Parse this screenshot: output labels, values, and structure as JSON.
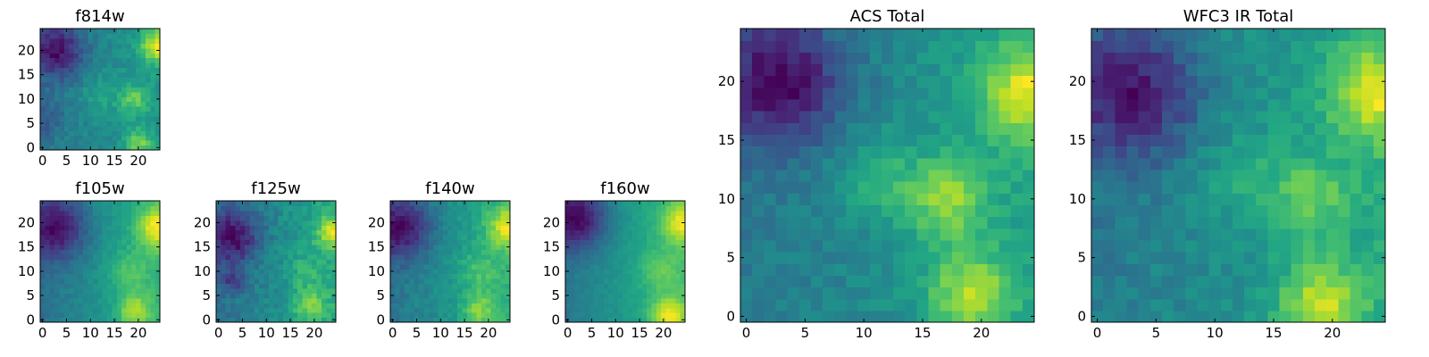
{
  "chart_data": [
    {
      "type": "heatmap",
      "title": "f814w",
      "xlim": [
        -0.5,
        24.5
      ],
      "ylim": [
        -0.5,
        24.5
      ],
      "xticks": [
        0,
        5,
        10,
        15,
        20
      ],
      "yticks": [
        0,
        5,
        10,
        15,
        20
      ],
      "grid_size": [
        25,
        25
      ],
      "colormap": "viridis",
      "value_range": [
        0,
        1
      ],
      "features": [
        {
          "x": 3,
          "y": 20,
          "sigma": 4,
          "amp": -0.6
        },
        {
          "x": 24,
          "y": 21,
          "sigma": 2.5,
          "amp": 0.65
        },
        {
          "x": 19,
          "y": 10,
          "sigma": 2.2,
          "amp": 0.4
        },
        {
          "x": 20,
          "y": 1,
          "sigma": 2.0,
          "amp": 0.45
        },
        {
          "x": 12,
          "y": 11,
          "sigma": 2.5,
          "amp": 0.2
        },
        {
          "x": 0,
          "y": 6,
          "sigma": 3,
          "amp": -0.2
        }
      ],
      "base": 0.5,
      "gradient": 0.2,
      "noise": 0.09
    },
    {
      "type": "heatmap",
      "title": "f105w",
      "xlim": [
        -0.5,
        24.5
      ],
      "ylim": [
        -0.5,
        24.5
      ],
      "xticks": [
        0,
        5,
        10,
        15,
        20
      ],
      "yticks": [
        0,
        5,
        10,
        15,
        20
      ],
      "grid_size": [
        25,
        25
      ],
      "colormap": "viridis",
      "value_range": [
        0,
        1
      ],
      "features": [
        {
          "x": 3,
          "y": 19,
          "sigma": 4.5,
          "amp": -0.5
        },
        {
          "x": 24,
          "y": 19,
          "sigma": 3,
          "amp": 0.5
        },
        {
          "x": 19,
          "y": 2,
          "sigma": 2.5,
          "amp": 0.4
        },
        {
          "x": 18,
          "y": 10,
          "sigma": 3,
          "amp": 0.2
        }
      ],
      "base": 0.45,
      "gradient": 0.35,
      "noise": 0.05
    },
    {
      "type": "heatmap",
      "title": "f125w",
      "xlim": [
        -0.5,
        24.5
      ],
      "ylim": [
        -0.5,
        24.5
      ],
      "xticks": [
        0,
        5,
        10,
        15,
        20
      ],
      "yticks": [
        0,
        5,
        10,
        15,
        20
      ],
      "grid_size": [
        25,
        25
      ],
      "colormap": "viridis",
      "value_range": [
        0,
        1
      ],
      "features": [
        {
          "x": 3,
          "y": 17,
          "sigma": 4,
          "amp": -0.5
        },
        {
          "x": 3,
          "y": 8,
          "sigma": 1.5,
          "amp": -0.3
        },
        {
          "x": 24,
          "y": 18,
          "sigma": 2.5,
          "amp": 0.5
        },
        {
          "x": 19,
          "y": 3,
          "sigma": 2.5,
          "amp": 0.35
        },
        {
          "x": 18,
          "y": 10,
          "sigma": 3,
          "amp": 0.15
        }
      ],
      "base": 0.45,
      "gradient": 0.3,
      "noise": 0.09
    },
    {
      "type": "heatmap",
      "title": "f140w",
      "xlim": [
        -0.5,
        24.5
      ],
      "ylim": [
        -0.5,
        24.5
      ],
      "xticks": [
        0,
        5,
        10,
        15,
        20
      ],
      "yticks": [
        0,
        5,
        10,
        15,
        20
      ],
      "grid_size": [
        25,
        25
      ],
      "colormap": "viridis",
      "value_range": [
        0,
        1
      ],
      "features": [
        {
          "x": 2,
          "y": 19,
          "sigma": 4.5,
          "amp": -0.55
        },
        {
          "x": 24,
          "y": 19,
          "sigma": 3,
          "amp": 0.5
        },
        {
          "x": 18,
          "y": 2,
          "sigma": 2.5,
          "amp": 0.35
        },
        {
          "x": 18,
          "y": 10,
          "sigma": 3,
          "amp": 0.2
        }
      ],
      "base": 0.42,
      "gradient": 0.35,
      "noise": 0.07
    },
    {
      "type": "heatmap",
      "title": "f160w",
      "xlim": [
        -0.5,
        24.5
      ],
      "ylim": [
        -0.5,
        24.5
      ],
      "xticks": [
        0,
        5,
        10,
        15,
        20
      ],
      "yticks": [
        0,
        5,
        10,
        15,
        20
      ],
      "grid_size": [
        25,
        25
      ],
      "colormap": "viridis",
      "value_range": [
        0,
        1
      ],
      "features": [
        {
          "x": 2,
          "y": 21,
          "sigma": 4.5,
          "amp": -0.6
        },
        {
          "x": 24,
          "y": 20,
          "sigma": 3,
          "amp": 0.45
        },
        {
          "x": 21,
          "y": 1,
          "sigma": 2.5,
          "amp": 0.5
        },
        {
          "x": 19,
          "y": 10,
          "sigma": 3,
          "amp": 0.2
        }
      ],
      "base": 0.42,
      "gradient": 0.4,
      "noise": 0.04
    },
    {
      "type": "heatmap",
      "title": "ACS Total",
      "xlim": [
        -0.5,
        24.5
      ],
      "ylim": [
        -0.5,
        24.5
      ],
      "xticks": [
        0,
        5,
        10,
        15,
        20
      ],
      "yticks": [
        0,
        5,
        10,
        15,
        20
      ],
      "grid_size": [
        25,
        25
      ],
      "colormap": "viridis",
      "value_range": [
        0,
        1
      ],
      "features": [
        {
          "x": 3,
          "y": 20,
          "sigma": 4,
          "amp": -0.5
        },
        {
          "x": 24,
          "y": 19,
          "sigma": 3,
          "amp": 0.5
        },
        {
          "x": 17,
          "y": 10,
          "sigma": 2.5,
          "amp": 0.4
        },
        {
          "x": 19,
          "y": 2,
          "sigma": 2.5,
          "amp": 0.45
        },
        {
          "x": 11,
          "y": 12,
          "sigma": 2.5,
          "amp": 0.2
        }
      ],
      "base": 0.5,
      "gradient": 0.2,
      "noise": 0.07
    },
    {
      "type": "heatmap",
      "title": "WFC3 IR Total",
      "xlim": [
        -0.5,
        24.5
      ],
      "ylim": [
        -0.5,
        24.5
      ],
      "xticks": [
        0,
        5,
        10,
        15,
        20
      ],
      "yticks": [
        0,
        5,
        10,
        15,
        20
      ],
      "grid_size": [
        25,
        25
      ],
      "colormap": "viridis",
      "value_range": [
        0,
        1
      ],
      "features": [
        {
          "x": 3,
          "y": 19,
          "sigma": 4,
          "amp": -0.5
        },
        {
          "x": 24,
          "y": 19,
          "sigma": 3,
          "amp": 0.5
        },
        {
          "x": 18,
          "y": 10,
          "sigma": 2.5,
          "amp": 0.3
        },
        {
          "x": 19,
          "y": 1,
          "sigma": 2.5,
          "amp": 0.5
        },
        {
          "x": 12,
          "y": 12,
          "sigma": 2.5,
          "amp": 0.15
        }
      ],
      "base": 0.48,
      "gradient": 0.25,
      "noise": 0.08
    }
  ]
}
